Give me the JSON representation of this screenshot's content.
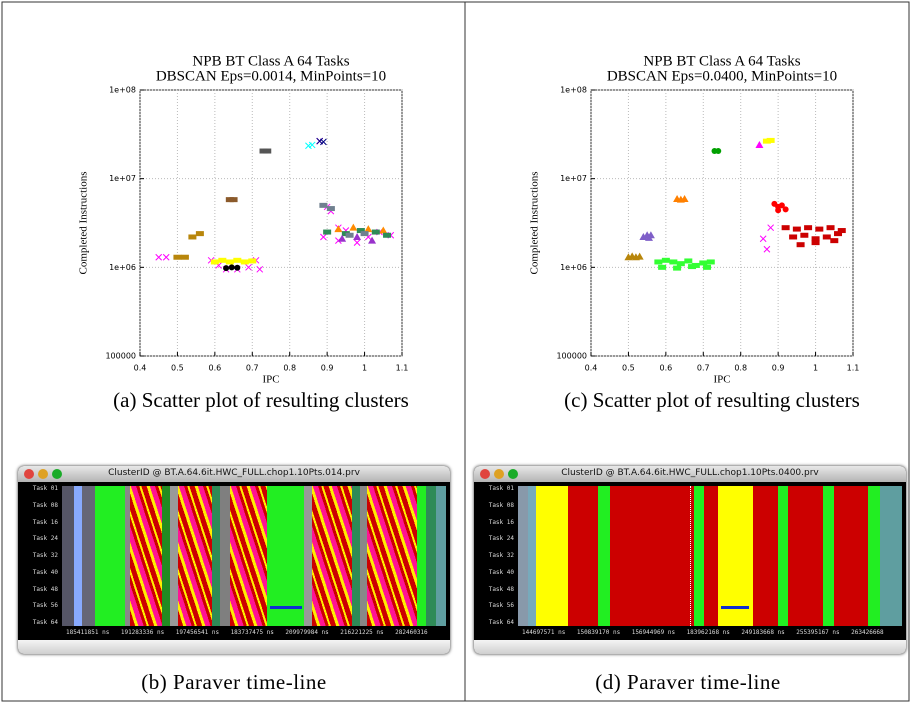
{
  "chart_data": [
    {
      "type": "scatter",
      "title": "NPB BT Class A 64 Tasks",
      "subtitle": "DBSCAN Eps=0.0014, MinPoints=10",
      "xlabel": "IPC",
      "ylabel": "Completed Instructions",
      "caption": "(a) Scatter plot of resulting clusters",
      "xlim": [
        0.4,
        1.1
      ],
      "xticks": [
        0.4,
        0.5,
        0.6,
        0.7,
        0.8,
        0.9,
        1,
        1.1
      ],
      "ylim": [
        100000,
        100000000
      ],
      "log_y": true,
      "grid": true,
      "yticks": [
        100000,
        {
          "value": 1000000,
          "label": "1e+06"
        },
        {
          "value": 10000000,
          "label": "1e+07"
        },
        {
          "value": 100000000,
          "label": "1e+08"
        }
      ],
      "series": [
        {
          "color": "#ff00ff",
          "marker": "x",
          "x": [
            0.45,
            0.47,
            0.59,
            0.61,
            0.63,
            0.66,
            0.69,
            0.71,
            0.72,
            0.89,
            0.9,
            0.91,
            0.93,
            0.95,
            0.98,
            1.01,
            1.04,
            1.07,
            0.88,
            0.93
          ],
          "y": [
            1300000,
            1300000,
            1200000,
            1050000,
            950000,
            950000,
            1000000,
            1200000,
            950000,
            2200000,
            4800000,
            4300000,
            2000000,
            2600000,
            1900000,
            2200000,
            2500000,
            2300000,
            26500000,
            2800000
          ]
        },
        {
          "color": "#ffff00",
          "marker": "square",
          "x": [
            0.6,
            0.62,
            0.64,
            0.66,
            0.68,
            0.7
          ],
          "y": [
            1150000,
            1200000,
            1150000,
            1200000,
            1150000,
            1180000
          ]
        },
        {
          "color": "#000000",
          "marker": "circle",
          "x": [
            0.63,
            0.645,
            0.66
          ],
          "y": [
            980000,
            1000000,
            990000
          ]
        },
        {
          "color": "#b8860b",
          "marker": "square",
          "x": [
            0.5,
            0.52,
            0.54,
            0.56
          ],
          "y": [
            1300000,
            1300000,
            2200000,
            2400000
          ]
        },
        {
          "color": "#8b5a2b",
          "marker": "square",
          "x": [
            0.64,
            0.65
          ],
          "y": [
            5800000,
            5800000
          ]
        },
        {
          "color": "#555555",
          "marker": "square",
          "x": [
            0.73,
            0.74
          ],
          "y": [
            20500000,
            20500000
          ]
        },
        {
          "color": "#00ffff",
          "marker": "x",
          "x": [
            0.85,
            0.86
          ],
          "y": [
            23500000,
            24000000
          ]
        },
        {
          "color": "#000080",
          "marker": "x",
          "x": [
            0.88,
            0.89
          ],
          "y": [
            26500000,
            26000000
          ]
        },
        {
          "color": "#ff8c00",
          "marker": "triangle",
          "x": [
            0.93,
            0.97,
            1.01,
            1.05
          ],
          "y": [
            2700000,
            2800000,
            2700000,
            2600000
          ]
        },
        {
          "color": "#2e8b57",
          "marker": "square",
          "x": [
            0.9,
            0.95,
            0.99,
            1.03,
            1.06
          ],
          "y": [
            2500000,
            2400000,
            2600000,
            2500000,
            2300000
          ]
        },
        {
          "color": "#708090",
          "marker": "square",
          "x": [
            0.89,
            0.91,
            0.96,
            1.0
          ],
          "y": [
            5000000,
            4600000,
            2300000,
            2400000
          ]
        },
        {
          "color": "#9932cc",
          "marker": "triangle",
          "x": [
            0.94,
            0.98,
            1.02
          ],
          "y": [
            2100000,
            2200000,
            2000000
          ]
        }
      ]
    },
    {
      "type": "scatter",
      "title": "NPB BT Class A 64 Tasks",
      "subtitle": "DBSCAN Eps=0.0400, MinPoints=10",
      "xlabel": "IPC",
      "ylabel": "Completed Instructions",
      "caption": "(c) Scatter plot of resulting clusters",
      "xlim": [
        0.4,
        1.1
      ],
      "xticks": [
        0.4,
        0.5,
        0.6,
        0.7,
        0.8,
        0.9,
        1,
        1.1
      ],
      "ylim": [
        100000,
        100000000
      ],
      "log_y": true,
      "grid": true,
      "yticks": [
        100000,
        {
          "value": 1000000,
          "label": "1e+06"
        },
        {
          "value": 10000000,
          "label": "1e+07"
        },
        {
          "value": 100000000,
          "label": "1e+08"
        }
      ],
      "series": [
        {
          "color": "#b8860b",
          "marker": "triangle",
          "x": [
            0.5,
            0.51,
            0.52,
            0.53
          ],
          "y": [
            1300000,
            1330000,
            1300000,
            1320000
          ]
        },
        {
          "color": "#7f5fc8",
          "marker": "triangle",
          "x": [
            0.54,
            0.55,
            0.56,
            0.555
          ],
          "y": [
            2200000,
            2300000,
            2300000,
            2150000
          ]
        },
        {
          "color": "#33ff33",
          "marker": "square",
          "x": [
            0.58,
            0.6,
            0.62,
            0.64,
            0.66,
            0.68,
            0.7,
            0.72,
            0.59,
            0.63,
            0.67,
            0.71
          ],
          "y": [
            1150000,
            1200000,
            1150000,
            1100000,
            1180000,
            1050000,
            1120000,
            1150000,
            1000000,
            980000,
            1020000,
            1000000
          ]
        },
        {
          "color": "#ff8000",
          "marker": "triangle",
          "x": [
            0.63,
            0.64,
            0.65
          ],
          "y": [
            5900000,
            5800000,
            5900000
          ]
        },
        {
          "color": "#00a000",
          "marker": "circle",
          "x": [
            0.73,
            0.74
          ],
          "y": [
            20500000,
            20500000
          ]
        },
        {
          "color": "#ff00ff",
          "marker": "triangle",
          "x": [
            0.85
          ],
          "y": [
            24000000
          ]
        },
        {
          "color": "#ffff00",
          "marker": "square",
          "x": [
            0.87,
            0.88
          ],
          "y": [
            26500000,
            27000000
          ]
        },
        {
          "color": "#ff0000",
          "marker": "circle",
          "x": [
            0.89,
            0.9,
            0.91,
            0.92,
            0.9
          ],
          "y": [
            5200000,
            4800000,
            5000000,
            4500000,
            4400000
          ]
        },
        {
          "color": "#cc0000",
          "marker": "square",
          "x": [
            0.92,
            0.95,
            0.98,
            1.01,
            1.04,
            1.07,
            0.94,
            0.97,
            1.0,
            1.03,
            1.06,
            0.96,
            1.0,
            1.05
          ],
          "y": [
            2800000,
            2700000,
            2800000,
            2700000,
            2800000,
            2600000,
            2200000,
            2300000,
            2100000,
            2200000,
            2400000,
            1800000,
            1900000,
            2000000
          ]
        },
        {
          "color": "#ff00ff",
          "marker": "x",
          "x": [
            0.86,
            0.88,
            0.87
          ],
          "y": [
            2100000,
            2800000,
            1600000
          ]
        }
      ]
    }
  ],
  "timelines": [
    {
      "window_title": "ClusterID @ BT.A.64.6it.HWC_FULL.chop1.10Pts.014.prv",
      "task_labels": [
        "Task 01",
        "Task 08",
        "Task 16",
        "Task 24",
        "Task 32",
        "Task 40",
        "Task 48",
        "Task 56",
        "Task 64"
      ],
      "time_labels": [
        "185411851 ns",
        "191283336 ns",
        "197456541 ns",
        "183737475 ns",
        "209979984 ns",
        "216221225 ns",
        "282460316"
      ],
      "caption": "(b) Paraver time-line"
    },
    {
      "window_title": "ClusterID @ BT.A.64.6it.HWC_FULL.chop1.10Pts.0400.prv",
      "task_labels": [
        "Task 01",
        "Task 08",
        "Task 16",
        "Task 24",
        "Task 32",
        "Task 40",
        "Task 48",
        "Task 56",
        "Task 64"
      ],
      "time_labels": [
        "144697571 ns",
        "150839170 ns",
        "156944969 ns",
        "183962168 ns",
        "249183668 ns",
        "255395167 ns",
        "263426668"
      ],
      "caption": "(d) Paraver time-line"
    }
  ]
}
